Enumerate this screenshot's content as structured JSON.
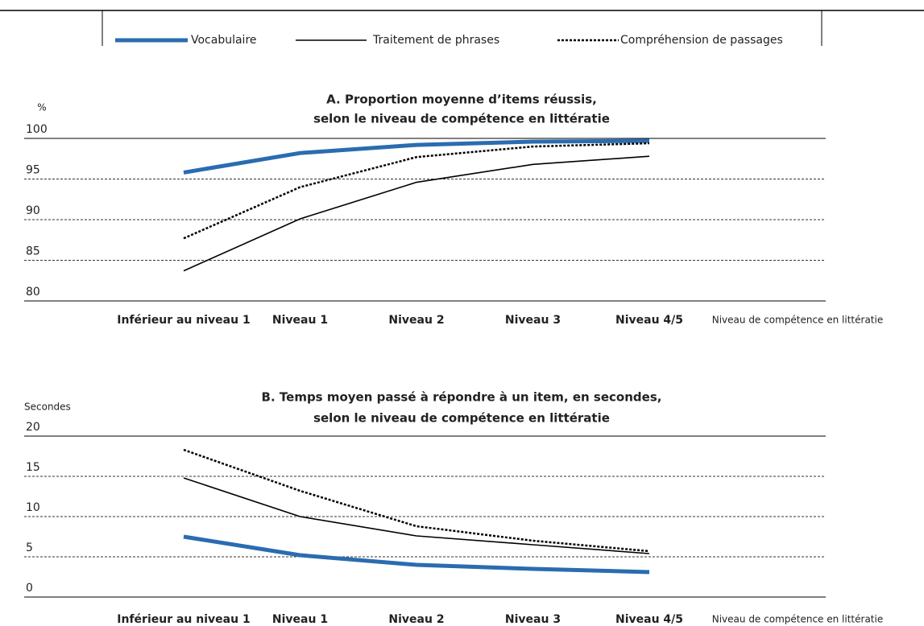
{
  "legend": {
    "series": [
      {
        "name": "Vocabulaire",
        "color": "#2b6cb0",
        "line_style": "thick"
      },
      {
        "name": "Traitement de phrases",
        "color": "#000000",
        "line_style": "thin"
      },
      {
        "name": "Compréhension de passages",
        "color": "#000000",
        "line_style": "dotted"
      }
    ]
  },
  "chart_data": [
    {
      "type": "line",
      "title": [
        "A. Proportion moyenne d’items réussis,",
        "selon le niveau de compétence en littératie"
      ],
      "ylabel": "%",
      "xlabel": "Niveau de compétence en littératie",
      "categories": [
        "Inférieur au niveau 1",
        "Niveau 1",
        "Niveau 2",
        "Niveau 3",
        "Niveau 4/5"
      ],
      "series": [
        {
          "values": [
            95.8,
            98.2,
            99.2,
            99.6,
            99.7
          ]
        },
        {
          "values": [
            83.7,
            90.1,
            94.6,
            96.8,
            97.8
          ]
        },
        {
          "values": [
            87.7,
            94.0,
            97.7,
            99.0,
            99.4
          ]
        }
      ],
      "ylim": [
        80,
        100
      ],
      "yticks": [
        80,
        85,
        90,
        95,
        100
      ],
      "grid": true
    },
    {
      "type": "line",
      "title": [
        "B. Temps moyen passé à répondre à un item, en secondes,",
        "selon le niveau de compétence en littératie"
      ],
      "ylabel": "Secondes",
      "xlabel": "Niveau de compétence en littératie",
      "categories": [
        "Inférieur au niveau 1",
        "Niveau 1",
        "Niveau 2",
        "Niveau 3",
        "Niveau 4/5"
      ],
      "series": [
        {
          "values": [
            7.5,
            5.2,
            4.0,
            3.5,
            3.1
          ]
        },
        {
          "values": [
            14.8,
            10.0,
            7.6,
            6.5,
            5.4
          ]
        },
        {
          "values": [
            18.3,
            13.2,
            8.8,
            7.0,
            5.7
          ]
        }
      ],
      "ylim": [
        0,
        20
      ],
      "yticks": [
        0,
        5,
        10,
        15,
        20
      ],
      "grid": true
    }
  ]
}
